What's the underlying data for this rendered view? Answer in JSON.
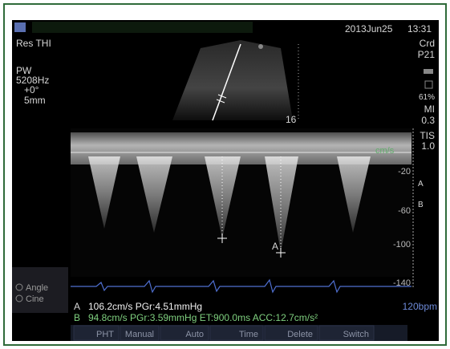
{
  "header": {
    "date": "2013Jun25",
    "time": "13:31"
  },
  "left_panel": {
    "mode": "Res THI",
    "doppler": "PW",
    "frequency": "5208Hz",
    "angle": "+0°",
    "gate": "5mm"
  },
  "right_panel": {
    "preset": "Crd",
    "probe": "P21",
    "power": "61%",
    "mi_label": "MI",
    "mi_value": "0.3",
    "tis_label": "TIS",
    "tis_value": "1.0"
  },
  "image": {
    "depth": "16"
  },
  "doppler": {
    "unit": "cm/s",
    "scale": [
      "-20",
      "-60",
      "-100",
      "-140"
    ],
    "marker": "A"
  },
  "measurements": {
    "a_label": "A",
    "a_text": "106.2cm/s PGr:4.51mmHg",
    "b_label": "B",
    "b_text": "94.8cm/s PGr:3.59mmHg ET:900.0ms ACC:12.7cm/s²"
  },
  "heart_rate": "120bpm",
  "side_menu": [
    "Angle",
    "Cine"
  ],
  "toolbar": [
    "PHT",
    "Manual",
    "Auto",
    "Time",
    "Delete",
    "Switch"
  ]
}
